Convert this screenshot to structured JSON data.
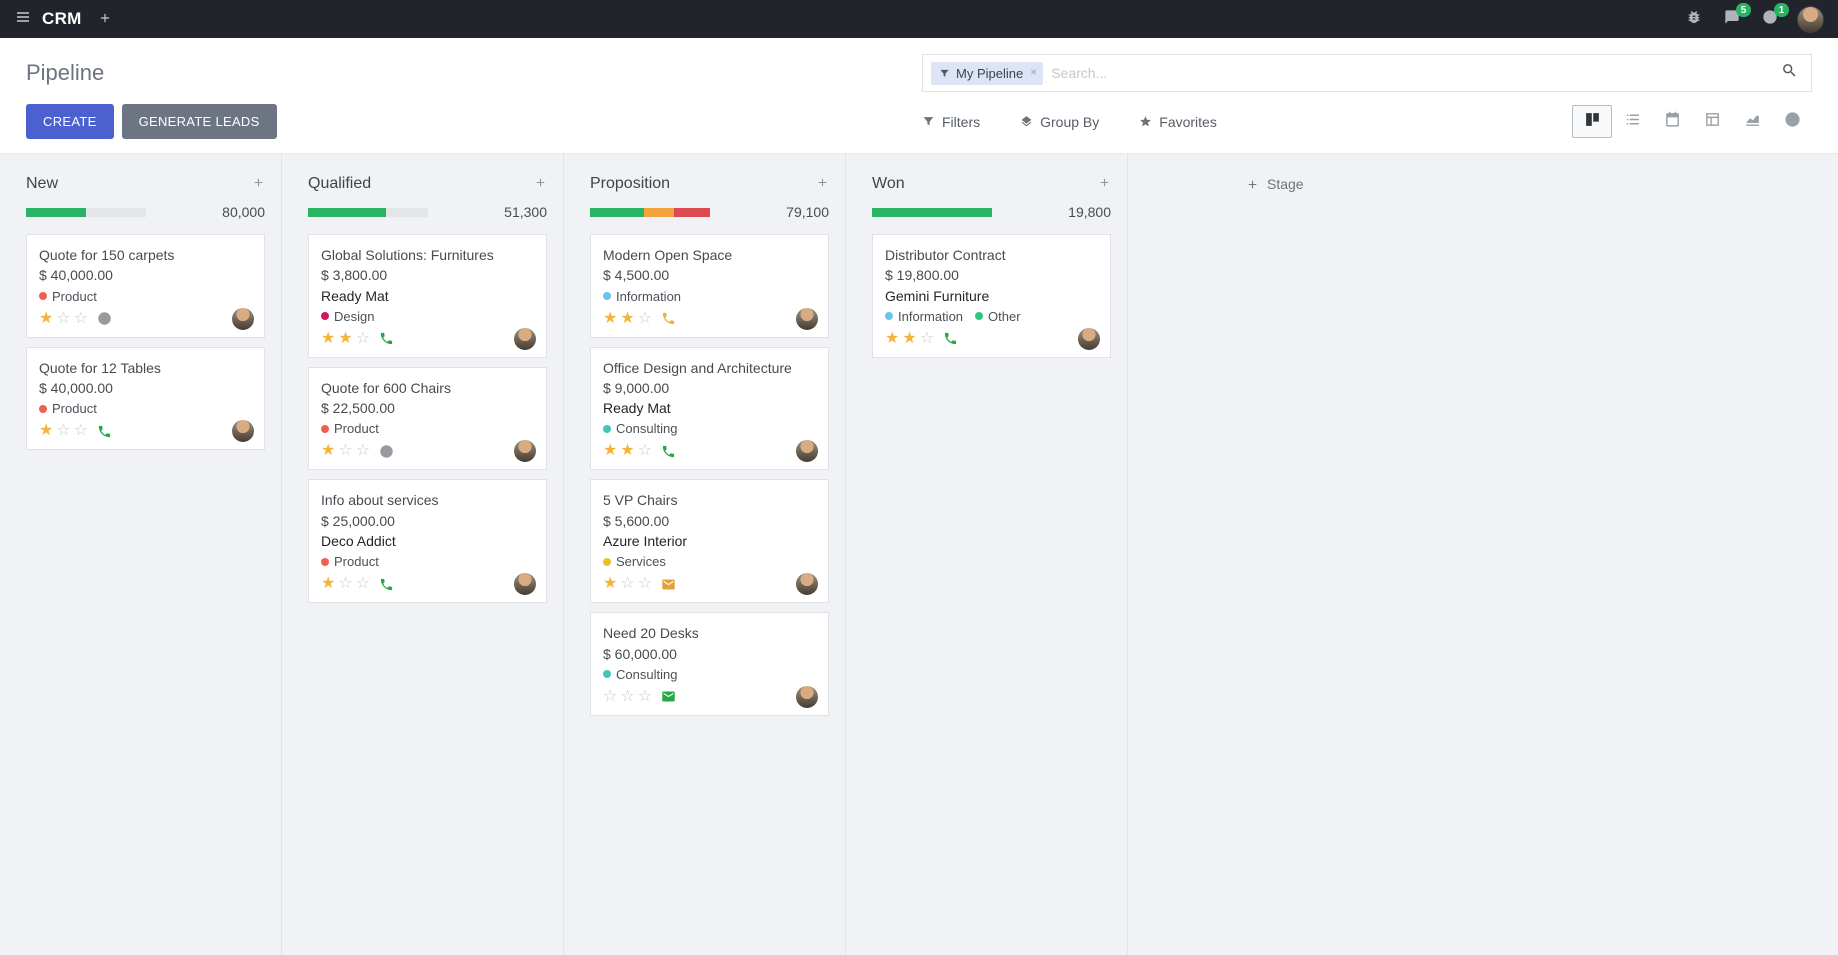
{
  "theme": {
    "accent": "#4c61cf",
    "secondary": "#6e7582",
    "topbar_bg": "#21252b",
    "badge_bg": "#28b463",
    "star_filled": "#f4b43c",
    "star_empty": "#c6cace"
  },
  "topbar": {
    "menu_icon": "menu-icon",
    "app_name": "CRM",
    "add_icon": "plus-icon",
    "debug_icon": "bug-icon",
    "messages_icon": "chat-icon",
    "messages_badge": "5",
    "activities_icon": "clock-icon",
    "activities_badge": "1"
  },
  "control_panel": {
    "breadcrumb": "Pipeline",
    "buttons": {
      "create": "CREATE",
      "generate_leads": "GENERATE LEADS"
    },
    "search": {
      "facet_icon": "filter-icon",
      "facet": "My Pipeline",
      "facet_remove": "×",
      "placeholder": "Search...",
      "search_icon": "search-icon"
    },
    "menus": [
      {
        "label": "Filters",
        "icon": "filter-icon"
      },
      {
        "label": "Group By",
        "icon": "layers-icon"
      },
      {
        "label": "Favorites",
        "icon": "star-icon"
      }
    ],
    "view_switcher": [
      {
        "icon": "kanban-view-icon",
        "active": true
      },
      {
        "icon": "list-view-icon",
        "active": false
      },
      {
        "icon": "calendar-view-icon",
        "active": false
      },
      {
        "icon": "pivot-view-icon",
        "active": false
      },
      {
        "icon": "graph-view-icon",
        "active": false
      },
      {
        "icon": "activity-view-icon",
        "active": false
      }
    ]
  },
  "kanban": {
    "add_column_card_icon": "plus-icon",
    "add_stage": {
      "icon": "plus-icon",
      "label": "Stage"
    },
    "columns": [
      {
        "title": "New",
        "counter": "80,000",
        "progress": [
          {
            "color": "#28b463",
            "width": "50%"
          }
        ],
        "cards": [
          {
            "title": "Quote for 150 carpets",
            "amount": "$ 40,000.00",
            "tags": [
              {
                "label": "Product",
                "color": "#f06050"
              }
            ],
            "stars": 1,
            "activity": {
              "icon": "clock-icon",
              "color": "#979ba0"
            }
          },
          {
            "title": "Quote for 12 Tables",
            "amount": "$ 40,000.00",
            "tags": [
              {
                "label": "Product",
                "color": "#f06050"
              }
            ],
            "stars": 1,
            "activity": {
              "icon": "phone-icon",
              "color": "#28a745"
            }
          }
        ]
      },
      {
        "title": "Qualified",
        "counter": "51,300",
        "progress": [
          {
            "color": "#28b463",
            "width": "65%"
          }
        ],
        "cards": [
          {
            "title": "Global Solutions: Furnitures",
            "amount": "$ 3,800.00",
            "partner": "Ready Mat",
            "tags": [
              {
                "label": "Design",
                "color": "#d6145f"
              }
            ],
            "stars": 2,
            "activity": {
              "icon": "phone-icon",
              "color": "#28a745"
            }
          },
          {
            "title": "Quote for 600 Chairs",
            "amount": "$ 22,500.00",
            "tags": [
              {
                "label": "Product",
                "color": "#f06050"
              }
            ],
            "stars": 1,
            "activity": {
              "icon": "clock-icon",
              "color": "#979ba0"
            }
          },
          {
            "title": "Info about services",
            "amount": "$ 25,000.00",
            "partner": "Deco Addict",
            "tags": [
              {
                "label": "Product",
                "color": "#f06050"
              }
            ],
            "stars": 1,
            "activity": {
              "icon": "phone-icon",
              "color": "#28a745"
            }
          }
        ]
      },
      {
        "title": "Proposition",
        "counter": "79,100",
        "progress": [
          {
            "color": "#28b463",
            "width": "45%"
          },
          {
            "color": "#f2a33c",
            "width": "25%"
          },
          {
            "color": "#dc4a52",
            "width": "30%"
          }
        ],
        "cards": [
          {
            "title": "Modern Open Space",
            "amount": "$ 4,500.00",
            "tags": [
              {
                "label": "Information",
                "color": "#6cc1ed"
              }
            ],
            "stars": 2,
            "activity": {
              "icon": "phone-icon",
              "color": "#f0ad4e"
            }
          },
          {
            "title": "Office Design and Architecture",
            "amount": "$ 9,000.00",
            "partner": "Ready Mat",
            "tags": [
              {
                "label": "Consulting",
                "color": "#45c4b6"
              }
            ],
            "stars": 2,
            "activity": {
              "icon": "phone-icon",
              "color": "#28a745"
            }
          },
          {
            "title": "5 VP Chairs",
            "amount": "$ 5,600.00",
            "partner": "Azure Interior",
            "tags": [
              {
                "label": "Services",
                "color": "#e8c227"
              }
            ],
            "stars": 1,
            "activity": {
              "icon": "envelope-icon",
              "color": "#e2a33d"
            }
          },
          {
            "title": "Need 20 Desks",
            "amount": "$ 60,000.00",
            "tags": [
              {
                "label": "Consulting",
                "color": "#45c4b6"
              }
            ],
            "stars": 0,
            "activity": {
              "icon": "envelope-icon",
              "color": "#28a745"
            }
          }
        ]
      },
      {
        "title": "Won",
        "counter": "19,800",
        "progress": [
          {
            "color": "#28b463",
            "width": "100%"
          }
        ],
        "cards": [
          {
            "title": "Distributor Contract",
            "amount": "$ 19,800.00",
            "partner": "Gemini Furniture",
            "tags": [
              {
                "label": "Information",
                "color": "#6cc1ed"
              },
              {
                "label": "Other",
                "color": "#30c381"
              }
            ],
            "stars": 2,
            "activity": {
              "icon": "phone-icon",
              "color": "#28a745"
            }
          }
        ]
      }
    ]
  }
}
